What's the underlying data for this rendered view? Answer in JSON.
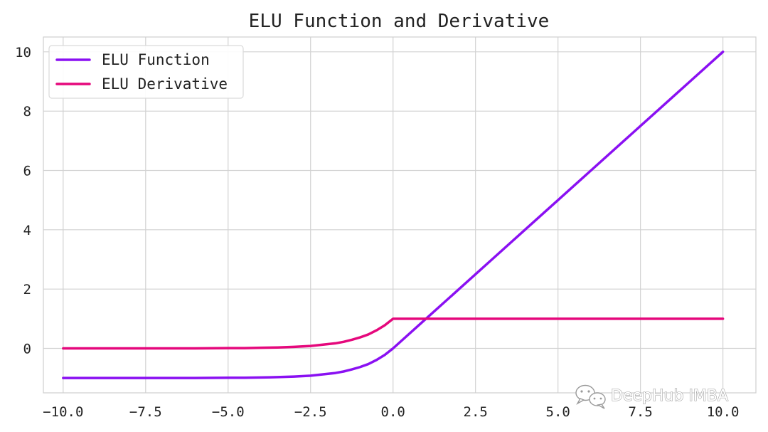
{
  "chart_data": {
    "type": "line",
    "title": "ELU Function and Derivative",
    "xlabel": "",
    "ylabel": "",
    "xlim": [
      -10.6,
      11.0
    ],
    "ylim": [
      -1.5,
      10.5
    ],
    "xticks": [
      -10.0,
      -7.5,
      -5.0,
      -2.5,
      0.0,
      2.5,
      5.0,
      7.5,
      10.0
    ],
    "xtick_labels": [
      "−10.0",
      "−7.5",
      "−5.0",
      "−2.5",
      "0.0",
      "2.5",
      "5.0",
      "7.5",
      "10.0"
    ],
    "yticks": [
      0,
      2,
      4,
      6,
      8,
      10
    ],
    "ytick_labels": [
      "0",
      "2",
      "4",
      "6",
      "8",
      "10"
    ],
    "grid": true,
    "legend_position": "top-left",
    "series": [
      {
        "name": "ELU Function",
        "color": "#8a10f2",
        "x": [
          -10,
          -9,
          -8,
          -7,
          -6,
          -5,
          -4.5,
          -4,
          -3.5,
          -3,
          -2.5,
          -2,
          -1.75,
          -1.5,
          -1.25,
          -1,
          -0.75,
          -0.5,
          -0.25,
          0,
          1,
          2,
          3,
          4,
          5,
          6,
          7,
          8,
          9,
          10
        ],
        "values": [
          -1.0,
          -1.0,
          -1.0,
          -1.0,
          -1.0,
          -0.99,
          -0.99,
          -0.98,
          -0.97,
          -0.95,
          -0.92,
          -0.86,
          -0.83,
          -0.78,
          -0.71,
          -0.63,
          -0.53,
          -0.39,
          -0.22,
          0,
          1,
          2,
          3,
          4,
          5,
          6,
          7,
          8,
          9,
          10
        ]
      },
      {
        "name": "ELU Derivative",
        "color": "#e5087c",
        "x": [
          -10,
          -9,
          -8,
          -7,
          -6,
          -5,
          -4.5,
          -4,
          -3.5,
          -3,
          -2.5,
          -2,
          -1.75,
          -1.5,
          -1.25,
          -1,
          -0.75,
          -0.5,
          -0.25,
          0,
          1,
          2,
          3,
          4,
          5,
          6,
          7,
          8,
          9,
          10
        ],
        "values": [
          0.0,
          0.0,
          0.0,
          0.0,
          0.0,
          0.01,
          0.01,
          0.02,
          0.03,
          0.05,
          0.08,
          0.14,
          0.17,
          0.22,
          0.29,
          0.37,
          0.47,
          0.61,
          0.78,
          1,
          1,
          1,
          1,
          1,
          1,
          1,
          1,
          1,
          1,
          1
        ]
      }
    ]
  },
  "colors": {
    "background": "#ffffff",
    "grid": "#d2d2d2",
    "spine": "#cfcfcf",
    "text": "#222222",
    "legend_border": "#d9d9d9"
  },
  "watermark": {
    "text": "DeepHub IMBA",
    "icon": "wechat-icon"
  }
}
